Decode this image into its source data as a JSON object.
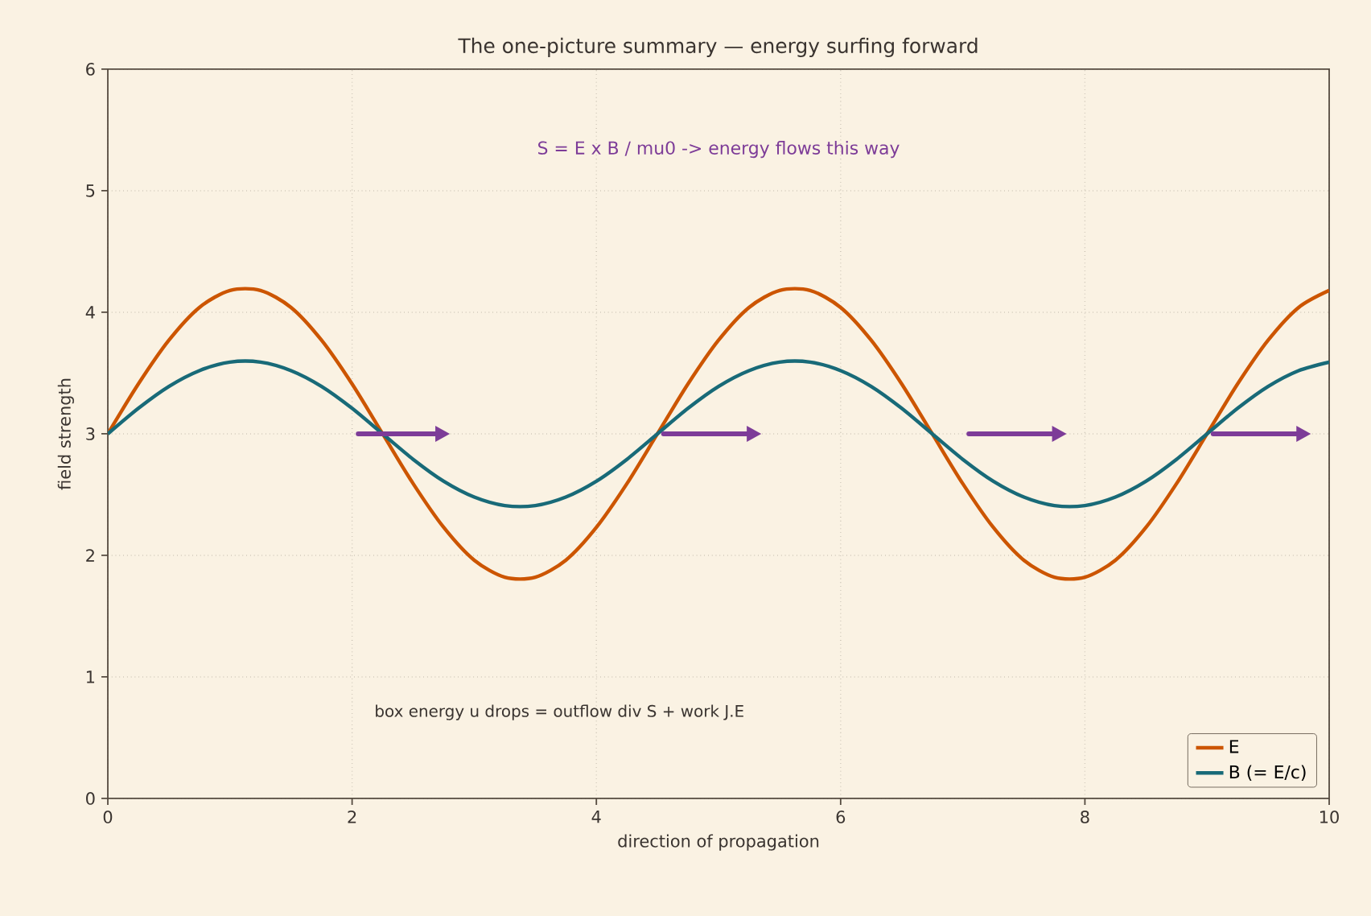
{
  "chart_data": {
    "type": "line",
    "title": "The one-picture summary — energy surfing forward",
    "xlabel": "direction of propagation",
    "ylabel": "field strength",
    "x": [
      0,
      0.25,
      0.5,
      0.75,
      1,
      1.25,
      1.5,
      1.75,
      2,
      2.25,
      2.5,
      2.75,
      3,
      3.25,
      3.5,
      3.75,
      4,
      4.25,
      4.5,
      4.75,
      5,
      5.25,
      5.5,
      5.75,
      6,
      6.25,
      6.5,
      6.75,
      7,
      7.25,
      7.5,
      7.75,
      8,
      8.25,
      8.5,
      8.75,
      9,
      9.25,
      9.5,
      9.75,
      10
    ],
    "series": [
      {
        "name": "E",
        "color": "#cc5500",
        "values": [
          3.0,
          3.41,
          3.77,
          4.04,
          4.18,
          4.18,
          4.04,
          3.77,
          3.41,
          3.0,
          2.59,
          2.23,
          1.96,
          1.82,
          1.82,
          1.96,
          2.23,
          2.59,
          3.0,
          3.41,
          3.77,
          4.04,
          4.18,
          4.18,
          4.04,
          3.77,
          3.41,
          3.0,
          2.59,
          2.23,
          1.96,
          1.82,
          1.82,
          1.96,
          2.23,
          2.59,
          3.0,
          3.41,
          3.77,
          4.04,
          4.18
        ]
      },
      {
        "name": "B (= E/c)",
        "color": "#186a78",
        "values": [
          3.0,
          3.21,
          3.39,
          3.52,
          3.59,
          3.59,
          3.52,
          3.39,
          3.21,
          3.0,
          2.79,
          2.61,
          2.48,
          2.41,
          2.41,
          2.48,
          2.61,
          2.79,
          3.0,
          3.21,
          3.39,
          3.52,
          3.59,
          3.59,
          3.52,
          3.39,
          3.21,
          3.0,
          2.79,
          2.61,
          2.48,
          2.41,
          2.41,
          2.48,
          2.61,
          2.79,
          3.0,
          3.21,
          3.39,
          3.52,
          3.59
        ]
      }
    ],
    "xlim": [
      0,
      10
    ],
    "ylim": [
      0,
      6
    ],
    "xticks": [
      0,
      2,
      4,
      6,
      8,
      10
    ],
    "yticks": [
      0,
      1,
      2,
      3,
      4,
      5,
      6
    ],
    "annotations": [
      "S = E x B / mu0  -> energy flows this way",
      "box energy u drops  =  outflow div S  +  work J.E"
    ],
    "grid": true,
    "legend": "bottom right",
    "marker": "none",
    "line_style": "solid"
  }
}
